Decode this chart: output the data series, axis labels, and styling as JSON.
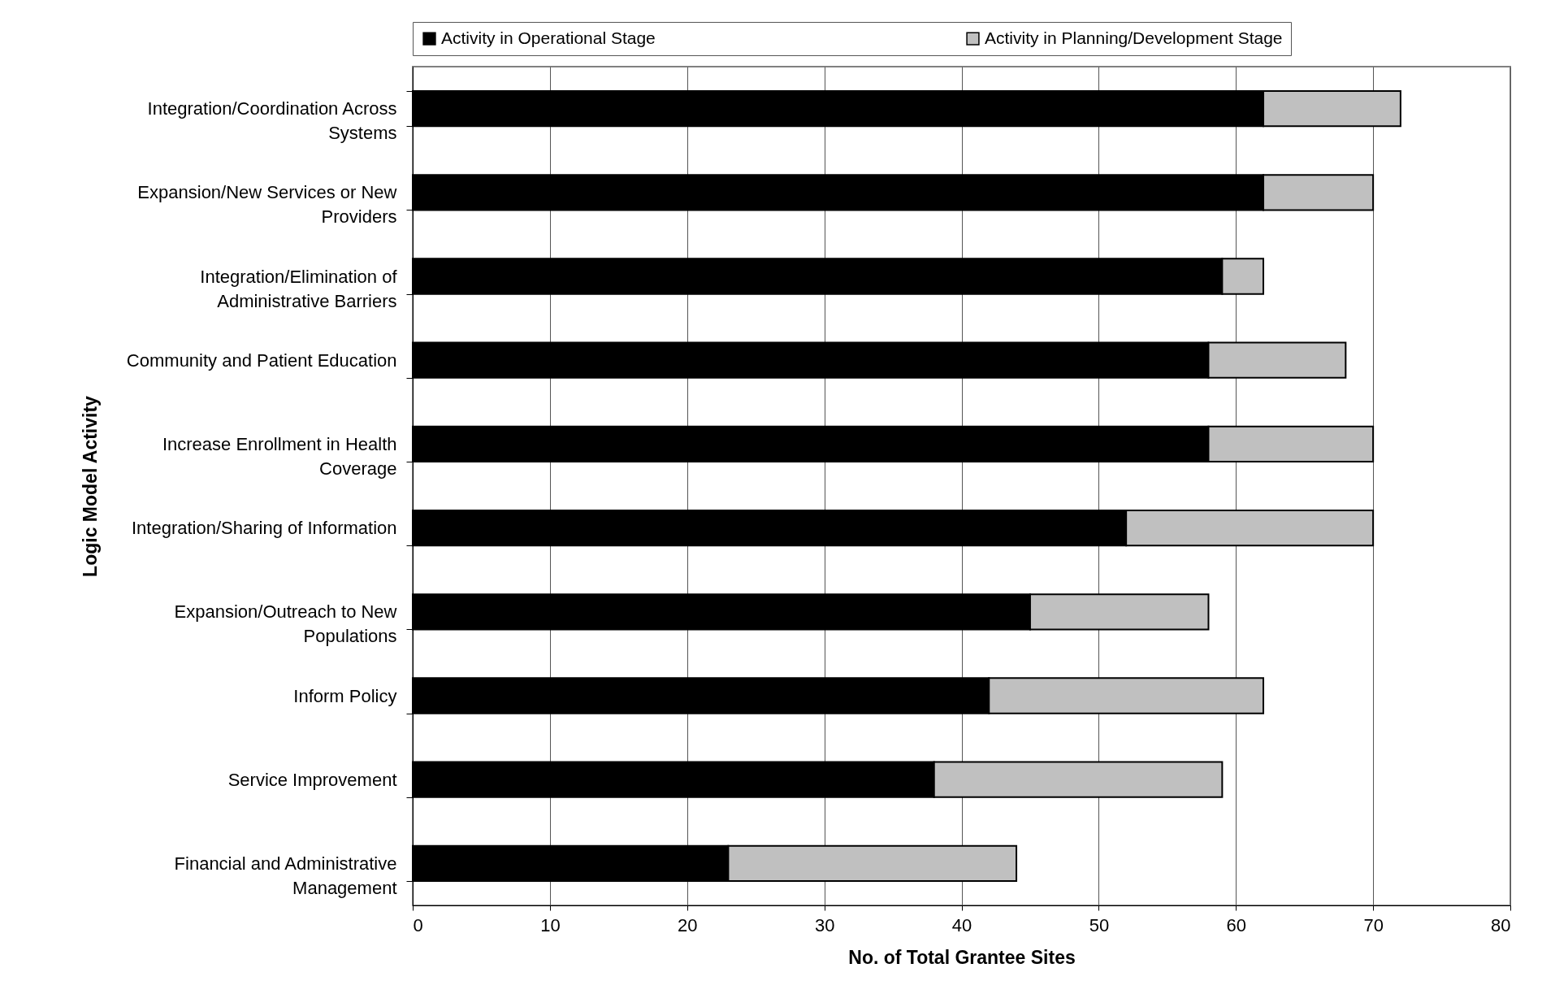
{
  "chart_data": {
    "type": "bar",
    "orientation": "horizontal",
    "stacked": true,
    "xlabel": "No. of Total Grantee Sites",
    "ylabel": "Logic Model Activity",
    "categories": [
      "Integration/Coordination Across Systems",
      "Expansion/New Services or New Providers",
      "Integration/Elimination of Administrative Barriers",
      "Community and Patient Education",
      "Increase Enrollment in Health Coverage",
      "Integration/Sharing of Information",
      "Expansion/Outreach to New Populations",
      "Inform Policy",
      "Service Improvement",
      "Financial and Administrative Management"
    ],
    "series": [
      {
        "name": "Activity in Operational Stage",
        "color": "#000000",
        "values": [
          62,
          62,
          59,
          58,
          58,
          52,
          45,
          42,
          38,
          23
        ]
      },
      {
        "name": "Activity in Planning/Development Stage",
        "color": "#c0c0c0",
        "values": [
          10,
          8,
          3,
          10,
          12,
          18,
          13,
          20,
          21,
          21
        ]
      }
    ],
    "xlim": [
      0,
      80
    ],
    "xticks": [
      0,
      10,
      20,
      30,
      40,
      50,
      60,
      70,
      80
    ],
    "grid": "x",
    "legend": "top"
  }
}
